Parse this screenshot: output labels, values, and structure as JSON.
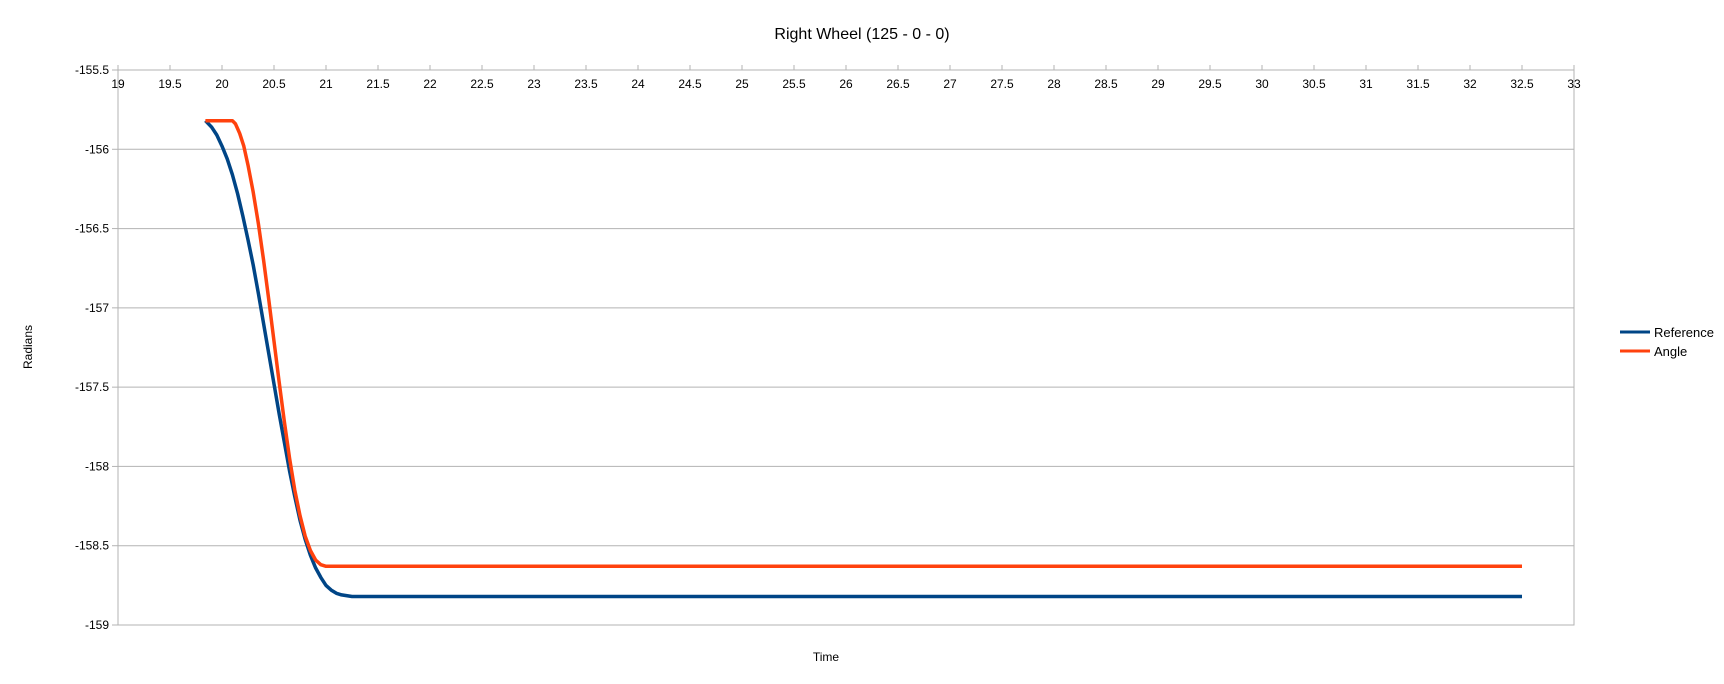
{
  "chart_data": {
    "type": "line",
    "title": "Right Wheel (125 - 0 - 0)",
    "xlabel": "Time",
    "ylabel": "Radians",
    "xlim": [
      19,
      33
    ],
    "ylim": [
      -159,
      -155.5
    ],
    "x_ticks": [
      19,
      19.5,
      20,
      20.5,
      21,
      21.5,
      22,
      22.5,
      23,
      23.5,
      24,
      24.5,
      25,
      25.5,
      26,
      26.5,
      27,
      27.5,
      28,
      28.5,
      29,
      29.5,
      30,
      30.5,
      31,
      31.5,
      32,
      32.5,
      33
    ],
    "y_ticks": [
      -155.5,
      -156,
      -156.5,
      -157,
      -157.5,
      -158,
      -158.5,
      -159
    ],
    "x_axis_position": "top",
    "grid": "horizontal",
    "legend_position": "right",
    "series": [
      {
        "name": "Reference",
        "color": "#004586",
        "points": [
          [
            19.84,
            -155.82
          ],
          [
            19.9,
            -155.86
          ],
          [
            19.95,
            -155.91
          ],
          [
            20.0,
            -155.98
          ],
          [
            20.05,
            -156.06
          ],
          [
            20.1,
            -156.16
          ],
          [
            20.15,
            -156.28
          ],
          [
            20.2,
            -156.42
          ],
          [
            20.25,
            -156.57
          ],
          [
            20.3,
            -156.73
          ],
          [
            20.35,
            -156.91
          ],
          [
            20.4,
            -157.1
          ],
          [
            20.45,
            -157.29
          ],
          [
            20.5,
            -157.48
          ],
          [
            20.55,
            -157.67
          ],
          [
            20.6,
            -157.85
          ],
          [
            20.65,
            -158.03
          ],
          [
            20.7,
            -158.19
          ],
          [
            20.75,
            -158.34
          ],
          [
            20.8,
            -158.46
          ],
          [
            20.85,
            -158.56
          ],
          [
            20.9,
            -158.64
          ],
          [
            20.95,
            -158.7
          ],
          [
            21.0,
            -158.75
          ],
          [
            21.05,
            -158.78
          ],
          [
            21.1,
            -158.8
          ],
          [
            21.15,
            -158.81
          ],
          [
            21.25,
            -158.82
          ],
          [
            32.5,
            -158.82
          ]
        ]
      },
      {
        "name": "Angle",
        "color": "#ff420e",
        "points": [
          [
            19.84,
            -155.82
          ],
          [
            20.0,
            -155.82
          ],
          [
            20.1,
            -155.82
          ],
          [
            20.13,
            -155.84
          ],
          [
            20.17,
            -155.9
          ],
          [
            20.21,
            -155.98
          ],
          [
            20.25,
            -156.1
          ],
          [
            20.3,
            -156.27
          ],
          [
            20.35,
            -156.47
          ],
          [
            20.4,
            -156.7
          ],
          [
            20.45,
            -156.95
          ],
          [
            20.5,
            -157.21
          ],
          [
            20.55,
            -157.47
          ],
          [
            20.6,
            -157.72
          ],
          [
            20.65,
            -157.95
          ],
          [
            20.7,
            -158.15
          ],
          [
            20.75,
            -158.31
          ],
          [
            20.8,
            -158.44
          ],
          [
            20.85,
            -158.53
          ],
          [
            20.9,
            -158.59
          ],
          [
            20.95,
            -158.62
          ],
          [
            21.0,
            -158.63
          ],
          [
            32.5,
            -158.63
          ]
        ]
      }
    ]
  }
}
